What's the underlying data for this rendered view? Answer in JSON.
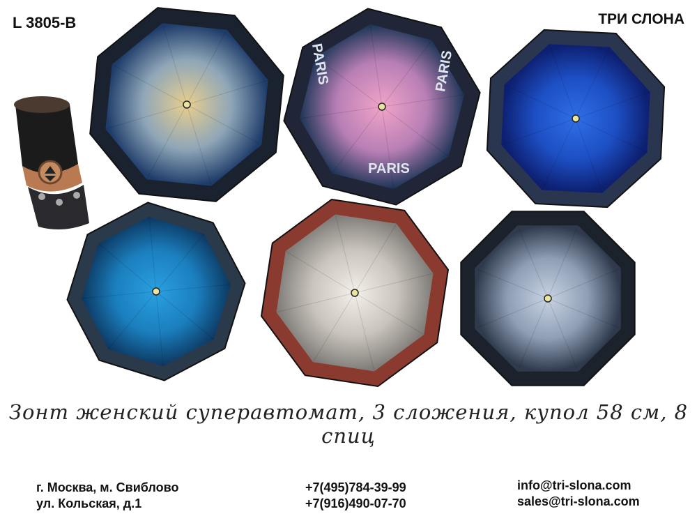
{
  "header": {
    "sku": "L 3805-B",
    "brand": "ТРИ СЛОНА"
  },
  "umbrellas": [
    {
      "name": "gold-blue",
      "center": "#e8cf8e",
      "mid": "#8fa6b8",
      "edge": "#1e3c6a",
      "border": "#1a2230"
    },
    {
      "name": "pink-paris",
      "center": "#f1a4c8",
      "mid": "#b87fb5",
      "edge": "#1d3557",
      "border": "#202637",
      "print": "PARIS"
    },
    {
      "name": "royal-blue",
      "center": "#2f6fe6",
      "mid": "#1d4fc4",
      "edge": "#0d1f70",
      "border": "#2a3550"
    },
    {
      "name": "turquoise",
      "center": "#2aa0e0",
      "mid": "#1b7fbe",
      "edge": "#0c3760",
      "border": "#2b3a4a"
    },
    {
      "name": "white-grey",
      "center": "#f4f0ea",
      "mid": "#c9c4bc",
      "edge": "#7f7c78",
      "border": "#8b3a30"
    },
    {
      "name": "silver-grey",
      "center": "#c8d4e4",
      "mid": "#8f9eb5",
      "edge": "#2f3a4d",
      "border": "#1c222c"
    }
  ],
  "description": "Зонт женский суперавтомат, 3 сложения, купол 58 см, 8 спиц",
  "contacts": {
    "address": [
      "г. Москва, м. Свиблово",
      "ул. Кольская, д.1"
    ],
    "phones": [
      "+7(495)784-39-99",
      "+7(916)490-07-70"
    ],
    "emails": [
      "info@tri-slona.com",
      "sales@tri-slona.com"
    ]
  }
}
